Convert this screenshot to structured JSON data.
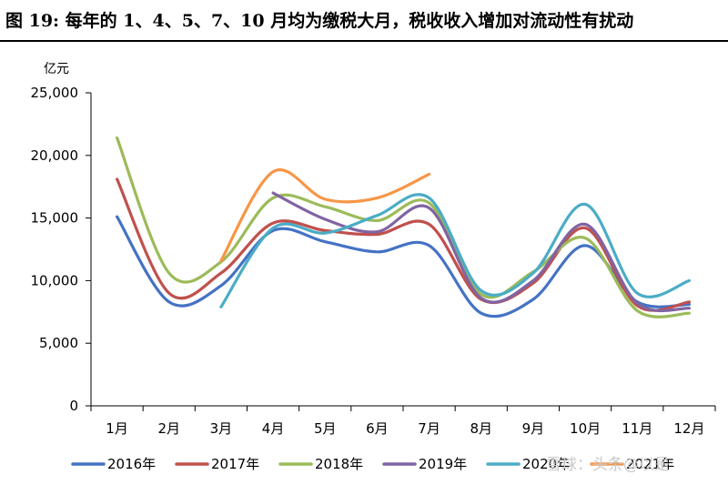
{
  "title": "图 19: 每年的 1、4、5、7、10 月均为缴税大月，税收收入增加对流动性有扰动",
  "watermark": "雪球：头条@以是",
  "chart_data": {
    "type": "line",
    "ylabel": "亿元",
    "ylim": [
      0,
      25000
    ],
    "yticks": [
      0,
      5000,
      10000,
      15000,
      20000,
      25000
    ],
    "ytick_labels": [
      "0",
      "5,000",
      "10,000",
      "15,000",
      "20,000",
      "25,000"
    ],
    "categories": [
      "1月",
      "2月",
      "3月",
      "4月",
      "5月",
      "6月",
      "7月",
      "8月",
      "9月",
      "10月",
      "11月",
      "12月"
    ],
    "grid": false,
    "legend_position": "bottom",
    "series": [
      {
        "name": "2016年",
        "color": "#4472C4",
        "values": [
          15100,
          8300,
          9600,
          14000,
          13100,
          12300,
          12800,
          7400,
          8500,
          12800,
          8300,
          8100
        ]
      },
      {
        "name": "2017年",
        "color": "#C0504D",
        "values": [
          18100,
          9000,
          10600,
          14600,
          14000,
          13700,
          14500,
          8500,
          9800,
          14200,
          8000,
          8300
        ]
      },
      {
        "name": "2018年",
        "color": "#9BBB59",
        "values": [
          21400,
          10600,
          11500,
          16600,
          15900,
          14800,
          16200,
          8900,
          10700,
          13400,
          7600,
          7400
        ]
      },
      {
        "name": "2019年",
        "color": "#8064A2",
        "values": [
          null,
          null,
          null,
          17000,
          14900,
          13900,
          15800,
          8600,
          10000,
          14500,
          8200,
          7800
        ]
      },
      {
        "name": "2020年",
        "color": "#4BACC6",
        "values": [
          null,
          null,
          7900,
          14200,
          13800,
          15200,
          16600,
          9200,
          10600,
          16100,
          9000,
          10000
        ]
      },
      {
        "name": "2021年",
        "color": "#F79646",
        "values": [
          null,
          null,
          11600,
          18700,
          16500,
          16600,
          18500,
          null,
          null,
          null,
          null,
          null
        ]
      }
    ]
  }
}
